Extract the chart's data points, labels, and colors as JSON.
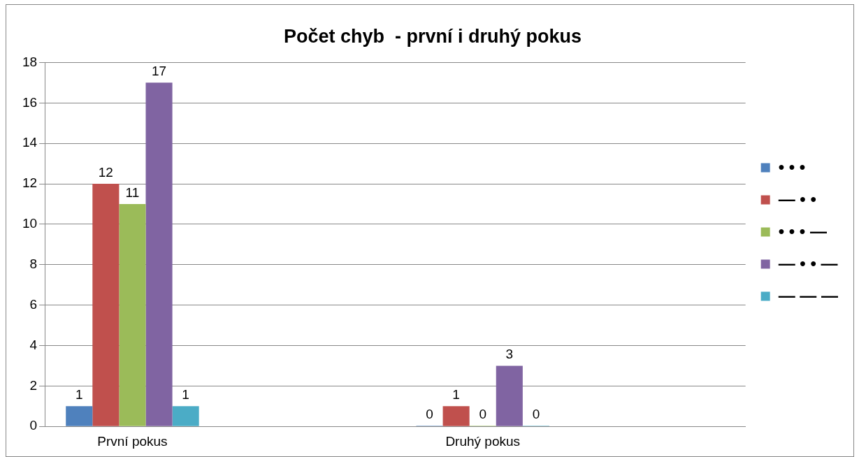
{
  "chart_data": {
    "type": "bar",
    "title": "Počet chyb  - první i druhý pokus",
    "categories": [
      "První pokus",
      null,
      "Druhý pokus",
      null
    ],
    "series": [
      {
        "name": "• • •",
        "color": "#4f81bd",
        "values": [
          1,
          null,
          0,
          null
        ],
        "value_labels": [
          "1",
          null,
          "0",
          null
        ]
      },
      {
        "name": "— • •",
        "color": "#c0504d",
        "values": [
          12,
          null,
          1,
          null
        ],
        "value_labels": [
          "12",
          null,
          "1",
          null
        ]
      },
      {
        "name": "• • • —",
        "color": "#9bbb59",
        "values": [
          11,
          null,
          0,
          null
        ],
        "value_labels": [
          "11",
          null,
          "0",
          null
        ]
      },
      {
        "name": "— • • —",
        "color": "#8064a2",
        "values": [
          17,
          null,
          3,
          null
        ],
        "value_labels": [
          "17",
          null,
          "3",
          null
        ]
      },
      {
        "name": "— — —",
        "color": "#4bacc6",
        "values": [
          1,
          null,
          0,
          null
        ],
        "value_labels": [
          "1",
          null,
          "0",
          null
        ]
      }
    ],
    "ylim": [
      0,
      18
    ],
    "yticks": [
      0,
      2,
      4,
      6,
      8,
      10,
      12,
      14,
      16,
      18
    ],
    "grid": "y",
    "legend": "right"
  }
}
